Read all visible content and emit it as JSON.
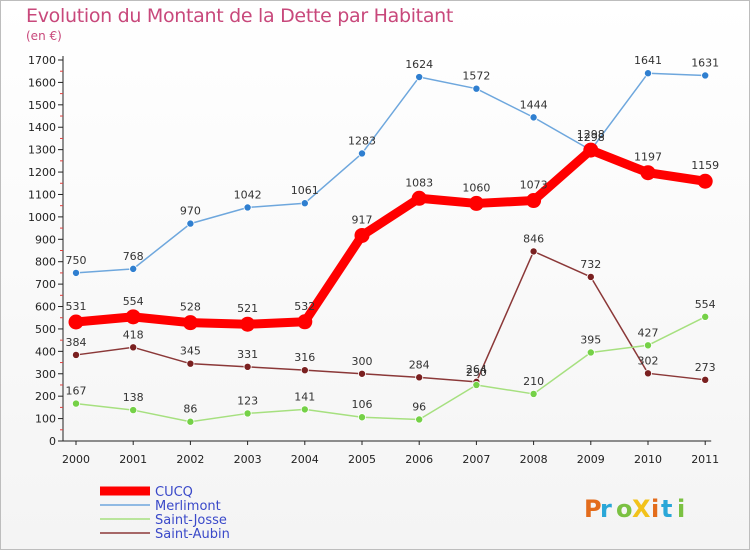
{
  "chart_data": {
    "type": "line",
    "title": "Evolution du Montant de la Dette par Habitant",
    "subtitle": "(en €)",
    "categories": [
      "2000",
      "2001",
      "2002",
      "2003",
      "2004",
      "2005",
      "2006",
      "2007",
      "2008",
      "2009",
      "2010",
      "2011"
    ],
    "ylim": [
      0,
      1700
    ],
    "yticks": [
      0,
      100,
      200,
      300,
      400,
      500,
      600,
      700,
      800,
      900,
      1000,
      1100,
      1200,
      1300,
      1400,
      1500,
      1600,
      1700
    ],
    "grid": false,
    "legend_position": "bottom-left",
    "series": [
      {
        "name": "CUCQ",
        "color": "#ff0000",
        "values": [
          531,
          554,
          528,
          521,
          532,
          917,
          1083,
          1060,
          1073,
          1298,
          1197,
          1159
        ]
      },
      {
        "name": "Merlimont",
        "color": "#6ea7dd",
        "marker": "#2f7fd0",
        "values": [
          750,
          768,
          970,
          1042,
          1061,
          1283,
          1624,
          1572,
          1444,
          1298,
          1641,
          1631
        ]
      },
      {
        "name": "Saint-Josse",
        "color": "#a6e07f",
        "marker": "#75d147",
        "values": [
          167,
          138,
          86,
          123,
          141,
          106,
          96,
          250,
          210,
          395,
          427,
          554
        ]
      },
      {
        "name": "Saint-Aubin",
        "color": "#8b3838",
        "marker": "#7a2020",
        "values": [
          384,
          418,
          345,
          331,
          316,
          300,
          284,
          264,
          846,
          732,
          302,
          273
        ]
      }
    ]
  },
  "logo": {
    "text": "ProXiti",
    "colors": [
      "#e36c1c",
      "#2aa7d8",
      "#7bc142",
      "#f2c21b"
    ]
  }
}
